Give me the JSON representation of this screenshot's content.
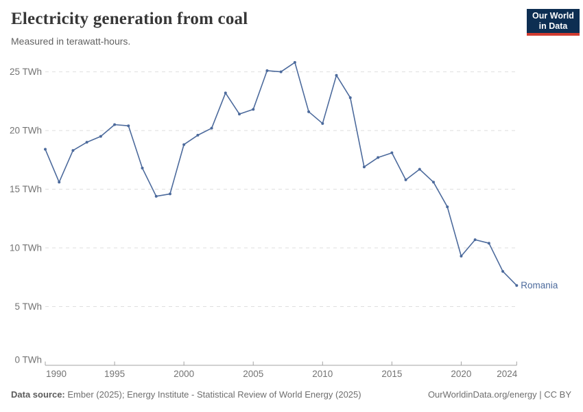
{
  "header": {
    "title": "Electricity generation from coal",
    "subtitle": "Measured in terawatt-hours."
  },
  "logo": {
    "line1": "Our World",
    "line2": "in Data"
  },
  "chart_data": {
    "type": "line",
    "title": "Electricity generation from coal",
    "subtitle": "Measured in terawatt-hours.",
    "unit": "TWh",
    "x": [
      1990,
      1991,
      1992,
      1993,
      1994,
      1995,
      1996,
      1997,
      1998,
      1999,
      2000,
      2001,
      2002,
      2003,
      2004,
      2005,
      2006,
      2007,
      2008,
      2009,
      2010,
      2011,
      2012,
      2013,
      2014,
      2015,
      2016,
      2017,
      2018,
      2019,
      2020,
      2021,
      2022,
      2023,
      2024
    ],
    "series": [
      {
        "name": "Romania",
        "color": "#4c6a9c",
        "values": [
          18.4,
          15.6,
          18.3,
          19.0,
          19.5,
          20.5,
          20.4,
          16.8,
          14.4,
          14.6,
          18.8,
          19.6,
          20.2,
          23.2,
          21.4,
          21.8,
          25.1,
          25.0,
          25.8,
          21.6,
          20.6,
          24.7,
          22.8,
          16.9,
          17.7,
          18.1,
          15.8,
          16.7,
          15.6,
          13.5,
          9.3,
          10.7,
          10.4,
          8.0,
          6.8
        ]
      }
    ],
    "ylim": [
      0,
      25
    ],
    "yticks": [
      0,
      5,
      10,
      15,
      20,
      25
    ],
    "ytick_suffix": " TWh",
    "xticks": [
      1990,
      1995,
      2000,
      2005,
      2010,
      2015,
      2020,
      2024
    ],
    "grid": true,
    "legend_position": "end-of-line"
  },
  "footer": {
    "source_label": "Data source:",
    "source_text": "Ember (2025); Energy Institute - Statistical Review of World Energy (2025)",
    "credit": "OurWorldinData.org/energy | CC BY"
  },
  "colors": {
    "series": "#4c6a9c",
    "grid": "#dedede",
    "axis": "#a3a3a3",
    "tick_label": "#737373",
    "title": "#373737",
    "subtitle": "#616161",
    "footer": "#6e6e6e",
    "logo_bg": "#0d2e52",
    "logo_accent": "#d13b30"
  }
}
